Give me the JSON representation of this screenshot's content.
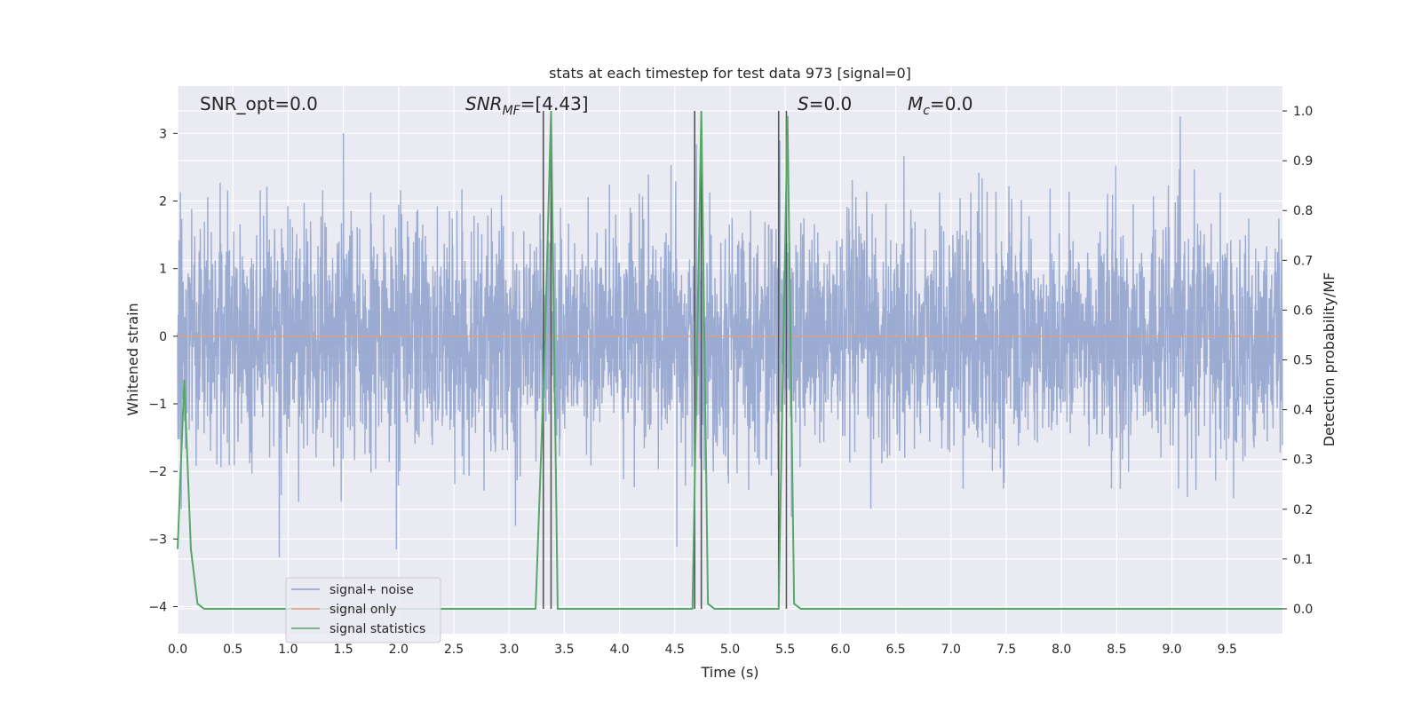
{
  "chart_data": {
    "type": "line",
    "title": "stats at each timestep for test data 973 [signal=0]",
    "xlabel": "Time (s)",
    "ylabel": "Whitened strain",
    "y2label": "Detection probability/MF",
    "xlim": [
      0,
      10
    ],
    "ylim": [
      -4.4,
      3.7
    ],
    "y2lim": [
      -0.05,
      1.05
    ],
    "xticks": [
      0.0,
      0.5,
      1.0,
      1.5,
      2.0,
      2.5,
      3.0,
      3.5,
      4.0,
      4.5,
      5.0,
      5.5,
      6.0,
      6.5,
      7.0,
      7.5,
      8.0,
      8.5,
      9.0,
      9.5
    ],
    "xtick_labels": [
      "0.0",
      "0.5",
      "1.0",
      "1.5",
      "2.0",
      "2.5",
      "3.0",
      "3.5",
      "4.0",
      "4.5",
      "5.0",
      "5.5",
      "6.0",
      "6.5",
      "7.0",
      "7.5",
      "8.0",
      "8.5",
      "9.0",
      "9.5"
    ],
    "yticks": [
      -4,
      -3,
      -2,
      -1,
      0,
      1,
      2,
      3
    ],
    "ytick_labels": [
      "−4",
      "−3",
      "−2",
      "−1",
      "0",
      "1",
      "2",
      "3"
    ],
    "y2ticks": [
      0.0,
      0.1,
      0.2,
      0.3,
      0.4,
      0.5,
      0.6,
      0.7,
      0.8,
      0.9,
      1.0
    ],
    "y2tick_labels": [
      "0.0",
      "0.1",
      "0.2",
      "0.3",
      "0.4",
      "0.5",
      "0.6",
      "0.7",
      "0.8",
      "0.9",
      "1.0"
    ],
    "grid": true,
    "legend_position": "lower-left",
    "series": [
      {
        "name": "signal+ noise",
        "color": "#8da0cb",
        "axis": "left",
        "kind": "noise",
        "amplitude_std": 0.85,
        "duration": 10,
        "approx_range": [
          -4.0,
          3.3
        ]
      },
      {
        "name": "signal only",
        "color": "#e0a080",
        "axis": "left",
        "x": [
          0,
          10
        ],
        "y": [
          0,
          0
        ]
      },
      {
        "name": "signal statistics",
        "color": "#55a868",
        "axis": "right",
        "x": [
          0.0,
          0.06,
          0.12,
          0.18,
          0.24,
          3.24,
          3.32,
          3.38,
          3.44,
          4.66,
          4.7,
          4.74,
          4.8,
          4.86,
          5.44,
          5.48,
          5.52,
          5.58,
          5.64,
          10.0
        ],
        "y": [
          0.12,
          0.46,
          0.12,
          0.01,
          0.0,
          0.0,
          0.5,
          1.0,
          0.0,
          0.0,
          0.5,
          1.0,
          0.01,
          0.0,
          0.0,
          0.5,
          0.99,
          0.01,
          0.0,
          0.0
        ]
      }
    ],
    "vlines": [
      3.31,
      3.38,
      4.68,
      4.74,
      5.44,
      5.51
    ],
    "vline_color": "#555555",
    "annotations": [
      {
        "id": "snr_opt",
        "text": "SNR_opt=0.0"
      },
      {
        "id": "snr_mf",
        "main": "SNR",
        "sub": "MF",
        "rest": "=[4.43]"
      },
      {
        "id": "s",
        "main": "S",
        "rest": "=0.0"
      },
      {
        "id": "mc",
        "main": "M",
        "sub": "c",
        "rest": "=0.0"
      }
    ]
  },
  "colors": {
    "axes_bg": "#eaeaf2",
    "grid": "#ffffff",
    "text": "#262626"
  }
}
